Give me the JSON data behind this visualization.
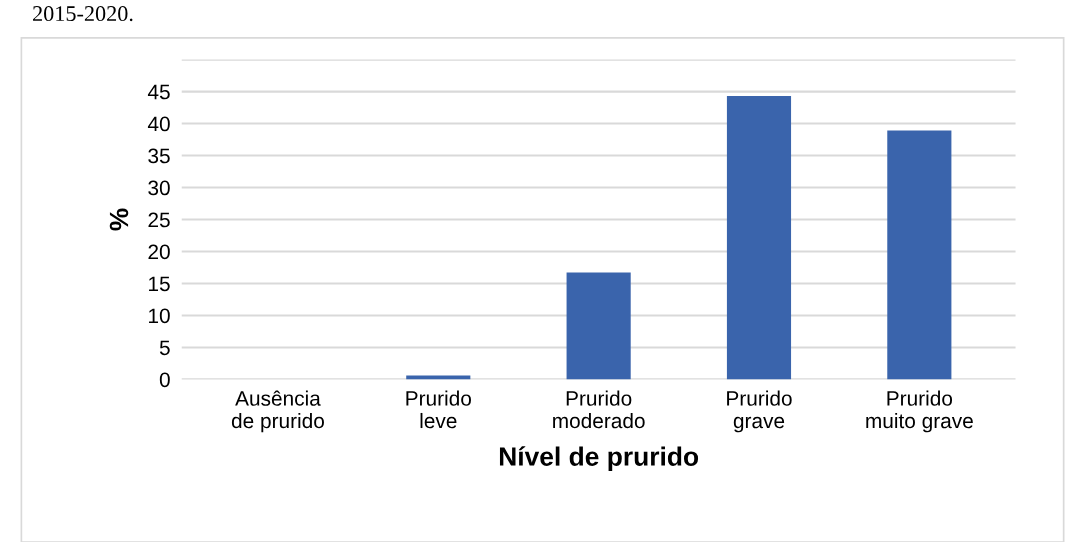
{
  "chart_data": {
    "type": "bar",
    "categories": [
      "Ausência\nde prurido",
      "Prurido\nleve",
      "Prurido\nmoderado",
      "Prurido\ngrave",
      "Prurido\nmuito grave"
    ],
    "values": [
      0,
      0.6,
      16.7,
      44.3,
      38.9
    ],
    "color": "#3a64ac",
    "xlabel": "Nível de prurido",
    "ylabel": "%",
    "ylim": [
      0,
      50
    ],
    "yticks": [
      0,
      5,
      10,
      15,
      20,
      25,
      30,
      35,
      40,
      45,
      {
        "value": 50,
        "label": null
      }
    ],
    "grid": "y",
    "annotations": [
      "2015-2020."
    ]
  }
}
